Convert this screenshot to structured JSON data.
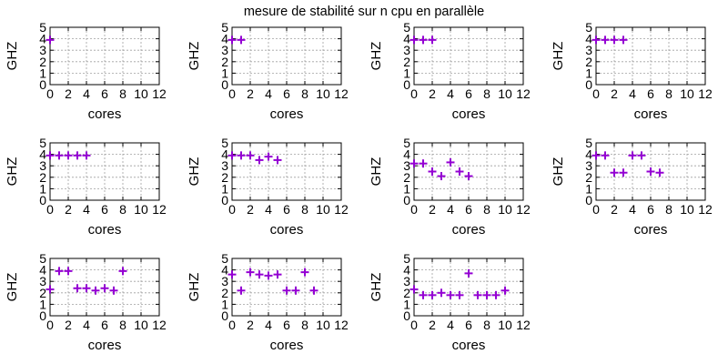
{
  "figure_title": "mesure de stabilité sur n cpu en parallèle",
  "colors": {
    "series": "#9400d3"
  },
  "chart_data": [
    {
      "type": "scatter",
      "xlabel": "cores",
      "ylabel": "GHZ",
      "xlim": [
        0,
        12
      ],
      "ylim": [
        0,
        5
      ],
      "grid": true,
      "xticks": [
        0,
        2,
        4,
        6,
        8,
        10,
        12
      ],
      "yticks": [
        0,
        1,
        2,
        3,
        4,
        5
      ],
      "x": [
        0
      ],
      "y": [
        3.9
      ]
    },
    {
      "type": "scatter",
      "xlabel": "cores",
      "ylabel": "GHZ",
      "xlim": [
        0,
        12
      ],
      "ylim": [
        0,
        5
      ],
      "grid": true,
      "xticks": [
        0,
        2,
        4,
        6,
        8,
        10,
        12
      ],
      "yticks": [
        0,
        1,
        2,
        3,
        4,
        5
      ],
      "x": [
        0,
        1
      ],
      "y": [
        3.9,
        3.9
      ]
    },
    {
      "type": "scatter",
      "xlabel": "cores",
      "ylabel": "GHZ",
      "xlim": [
        0,
        12
      ],
      "ylim": [
        0,
        5
      ],
      "grid": true,
      "xticks": [
        0,
        2,
        4,
        6,
        8,
        10,
        12
      ],
      "yticks": [
        0,
        1,
        2,
        3,
        4,
        5
      ],
      "x": [
        0,
        1,
        2
      ],
      "y": [
        3.9,
        3.9,
        3.9
      ]
    },
    {
      "type": "scatter",
      "xlabel": "cores",
      "ylabel": "GHZ",
      "xlim": [
        0,
        12
      ],
      "ylim": [
        0,
        5
      ],
      "grid": true,
      "xticks": [
        0,
        2,
        4,
        6,
        8,
        10,
        12
      ],
      "yticks": [
        0,
        1,
        2,
        3,
        4,
        5
      ],
      "x": [
        0,
        1,
        2,
        3
      ],
      "y": [
        3.9,
        3.9,
        3.9,
        3.9
      ]
    },
    {
      "type": "scatter",
      "xlabel": "cores",
      "ylabel": "GHZ",
      "xlim": [
        0,
        12
      ],
      "ylim": [
        0,
        5
      ],
      "grid": true,
      "xticks": [
        0,
        2,
        4,
        6,
        8,
        10,
        12
      ],
      "yticks": [
        0,
        1,
        2,
        3,
        4,
        5
      ],
      "x": [
        0,
        1,
        2,
        3,
        4
      ],
      "y": [
        3.9,
        3.9,
        3.9,
        3.9,
        3.9
      ]
    },
    {
      "type": "scatter",
      "xlabel": "cores",
      "ylabel": "GHZ",
      "xlim": [
        0,
        12
      ],
      "ylim": [
        0,
        5
      ],
      "grid": true,
      "xticks": [
        0,
        2,
        4,
        6,
        8,
        10,
        12
      ],
      "yticks": [
        0,
        1,
        2,
        3,
        4,
        5
      ],
      "x": [
        0,
        1,
        2,
        3,
        4,
        5
      ],
      "y": [
        3.9,
        3.9,
        3.9,
        3.5,
        3.8,
        3.5
      ]
    },
    {
      "type": "scatter",
      "xlabel": "cores",
      "ylabel": "GHZ",
      "xlim": [
        0,
        12
      ],
      "ylim": [
        0,
        5
      ],
      "grid": true,
      "xticks": [
        0,
        2,
        4,
        6,
        8,
        10,
        12
      ],
      "yticks": [
        0,
        1,
        2,
        3,
        4,
        5
      ],
      "x": [
        0,
        1,
        2,
        3,
        4,
        5,
        6
      ],
      "y": [
        3.2,
        3.2,
        2.5,
        2.1,
        3.3,
        2.5,
        2.1
      ]
    },
    {
      "type": "scatter",
      "xlabel": "cores",
      "ylabel": "GHZ",
      "xlim": [
        0,
        12
      ],
      "ylim": [
        0,
        5
      ],
      "grid": true,
      "xticks": [
        0,
        2,
        4,
        6,
        8,
        10,
        12
      ],
      "yticks": [
        0,
        1,
        2,
        3,
        4,
        5
      ],
      "x": [
        0,
        1,
        2,
        3,
        4,
        5,
        6,
        7
      ],
      "y": [
        3.9,
        3.9,
        2.4,
        2.4,
        3.9,
        3.9,
        2.5,
        2.4
      ]
    },
    {
      "type": "scatter",
      "xlabel": "cores",
      "ylabel": "GHZ",
      "xlim": [
        0,
        12
      ],
      "ylim": [
        0,
        5
      ],
      "grid": true,
      "xticks": [
        0,
        2,
        4,
        6,
        8,
        10,
        12
      ],
      "yticks": [
        0,
        1,
        2,
        3,
        4,
        5
      ],
      "x": [
        0,
        1,
        2,
        3,
        4,
        5,
        6,
        7,
        8
      ],
      "y": [
        2.3,
        3.9,
        3.9,
        2.4,
        2.4,
        2.2,
        2.4,
        2.2,
        3.9
      ]
    },
    {
      "type": "scatter",
      "xlabel": "cores",
      "ylabel": "GHZ",
      "xlim": [
        0,
        12
      ],
      "ylim": [
        0,
        5
      ],
      "grid": true,
      "xticks": [
        0,
        2,
        4,
        6,
        8,
        10,
        12
      ],
      "yticks": [
        0,
        1,
        2,
        3,
        4,
        5
      ],
      "x": [
        0,
        1,
        2,
        3,
        4,
        5,
        6,
        7,
        8,
        9
      ],
      "y": [
        3.6,
        2.2,
        3.8,
        3.6,
        3.5,
        3.6,
        2.2,
        2.2,
        3.8,
        2.2
      ]
    },
    {
      "type": "scatter",
      "xlabel": "cores",
      "ylabel": "GHZ",
      "xlim": [
        0,
        12
      ],
      "ylim": [
        0,
        5
      ],
      "grid": true,
      "xticks": [
        0,
        2,
        4,
        6,
        8,
        10,
        12
      ],
      "yticks": [
        0,
        1,
        2,
        3,
        4,
        5
      ],
      "x": [
        0,
        1,
        2,
        3,
        4,
        5,
        6,
        7,
        8,
        9,
        10
      ],
      "y": [
        2.3,
        1.8,
        1.8,
        2.0,
        1.8,
        1.8,
        3.7,
        1.8,
        1.8,
        1.8,
        2.2
      ]
    }
  ]
}
